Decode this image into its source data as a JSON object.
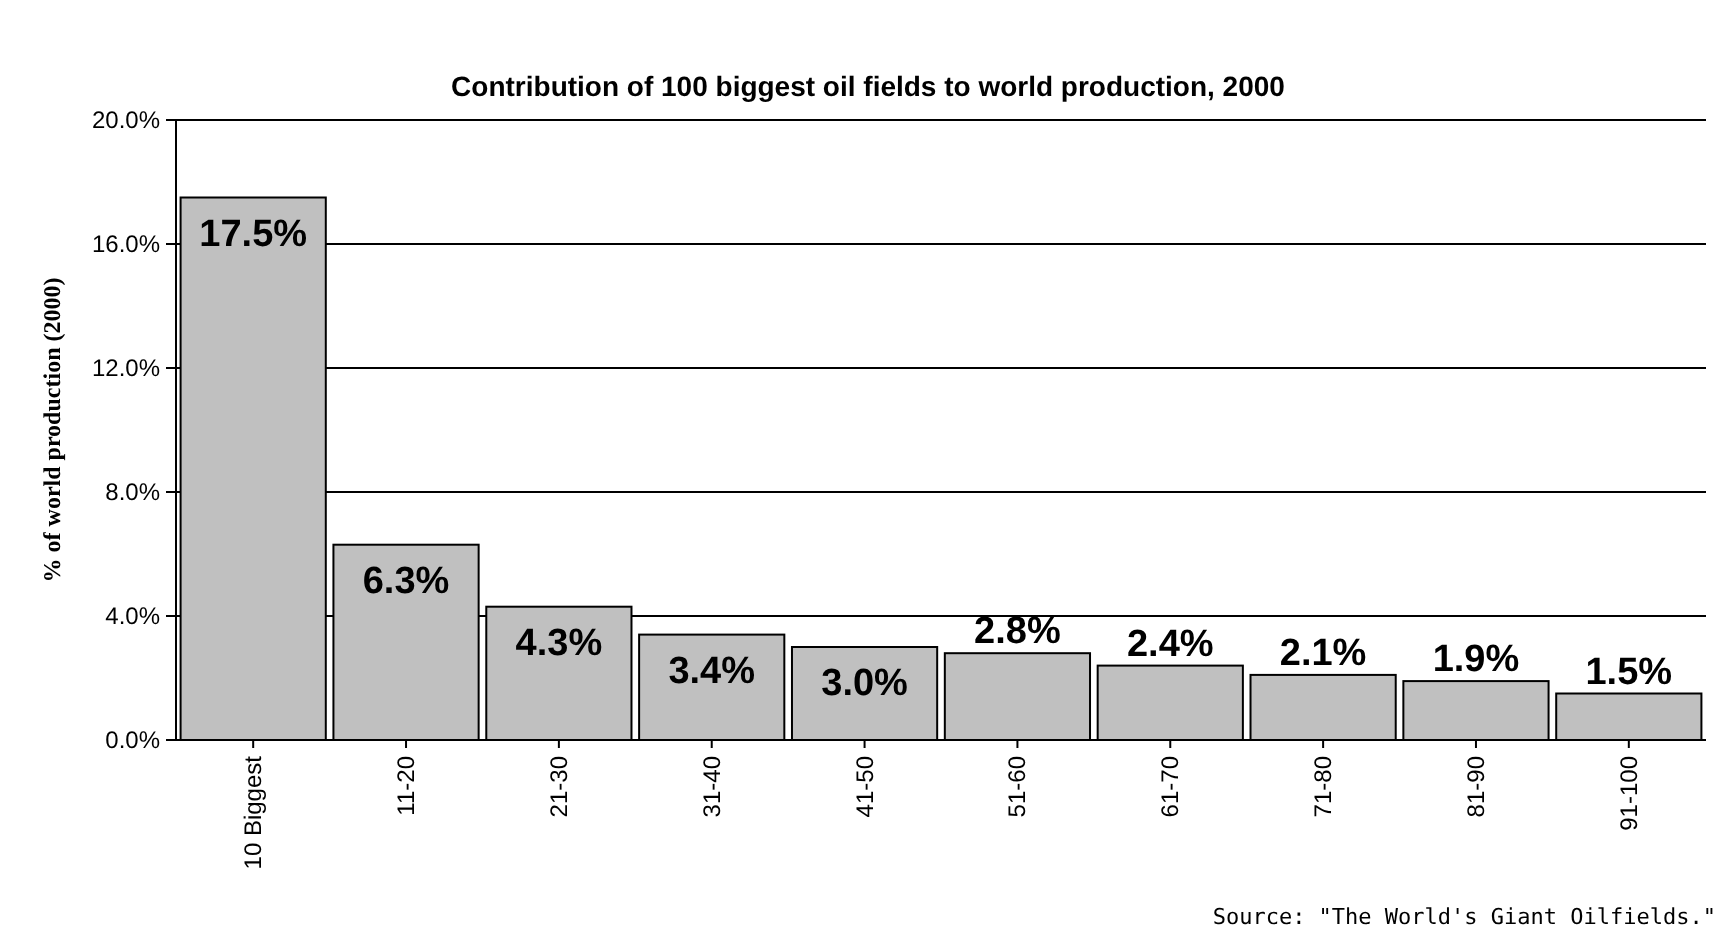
{
  "chart_data": {
    "type": "bar",
    "title": "Contribution of 100 biggest oil fields to world production, 2000",
    "ylabel": "% of world production (2000)",
    "categories": [
      "10 Biggest",
      "11-20",
      "21-30",
      "31-40",
      "41-50",
      "51-60",
      "61-70",
      "71-80",
      "81-90",
      "91-100"
    ],
    "values": [
      17.5,
      6.3,
      4.3,
      3.4,
      3.0,
      2.8,
      2.4,
      2.1,
      1.9,
      1.5
    ],
    "value_labels": [
      "17.5%",
      "6.3%",
      "4.3%",
      "3.4%",
      "3.0%",
      "2.8%",
      "2.4%",
      "2.1%",
      "1.9%",
      "1.5%"
    ],
    "color": "#c0c0c0",
    "ylim": [
      0,
      20
    ],
    "yticks": [
      {
        "value": 0,
        "label": "0.0%"
      },
      {
        "value": 4,
        "label": "4.0%"
      },
      {
        "value": 8,
        "label": "8.0%"
      },
      {
        "value": 12,
        "label": "12.0%"
      },
      {
        "value": 16,
        "label": "16.0%"
      },
      {
        "value": 20,
        "label": "20.0%"
      }
    ],
    "grid": "y",
    "annotations": [
      "Source: \"The World's Giant Oilfields.\""
    ]
  }
}
